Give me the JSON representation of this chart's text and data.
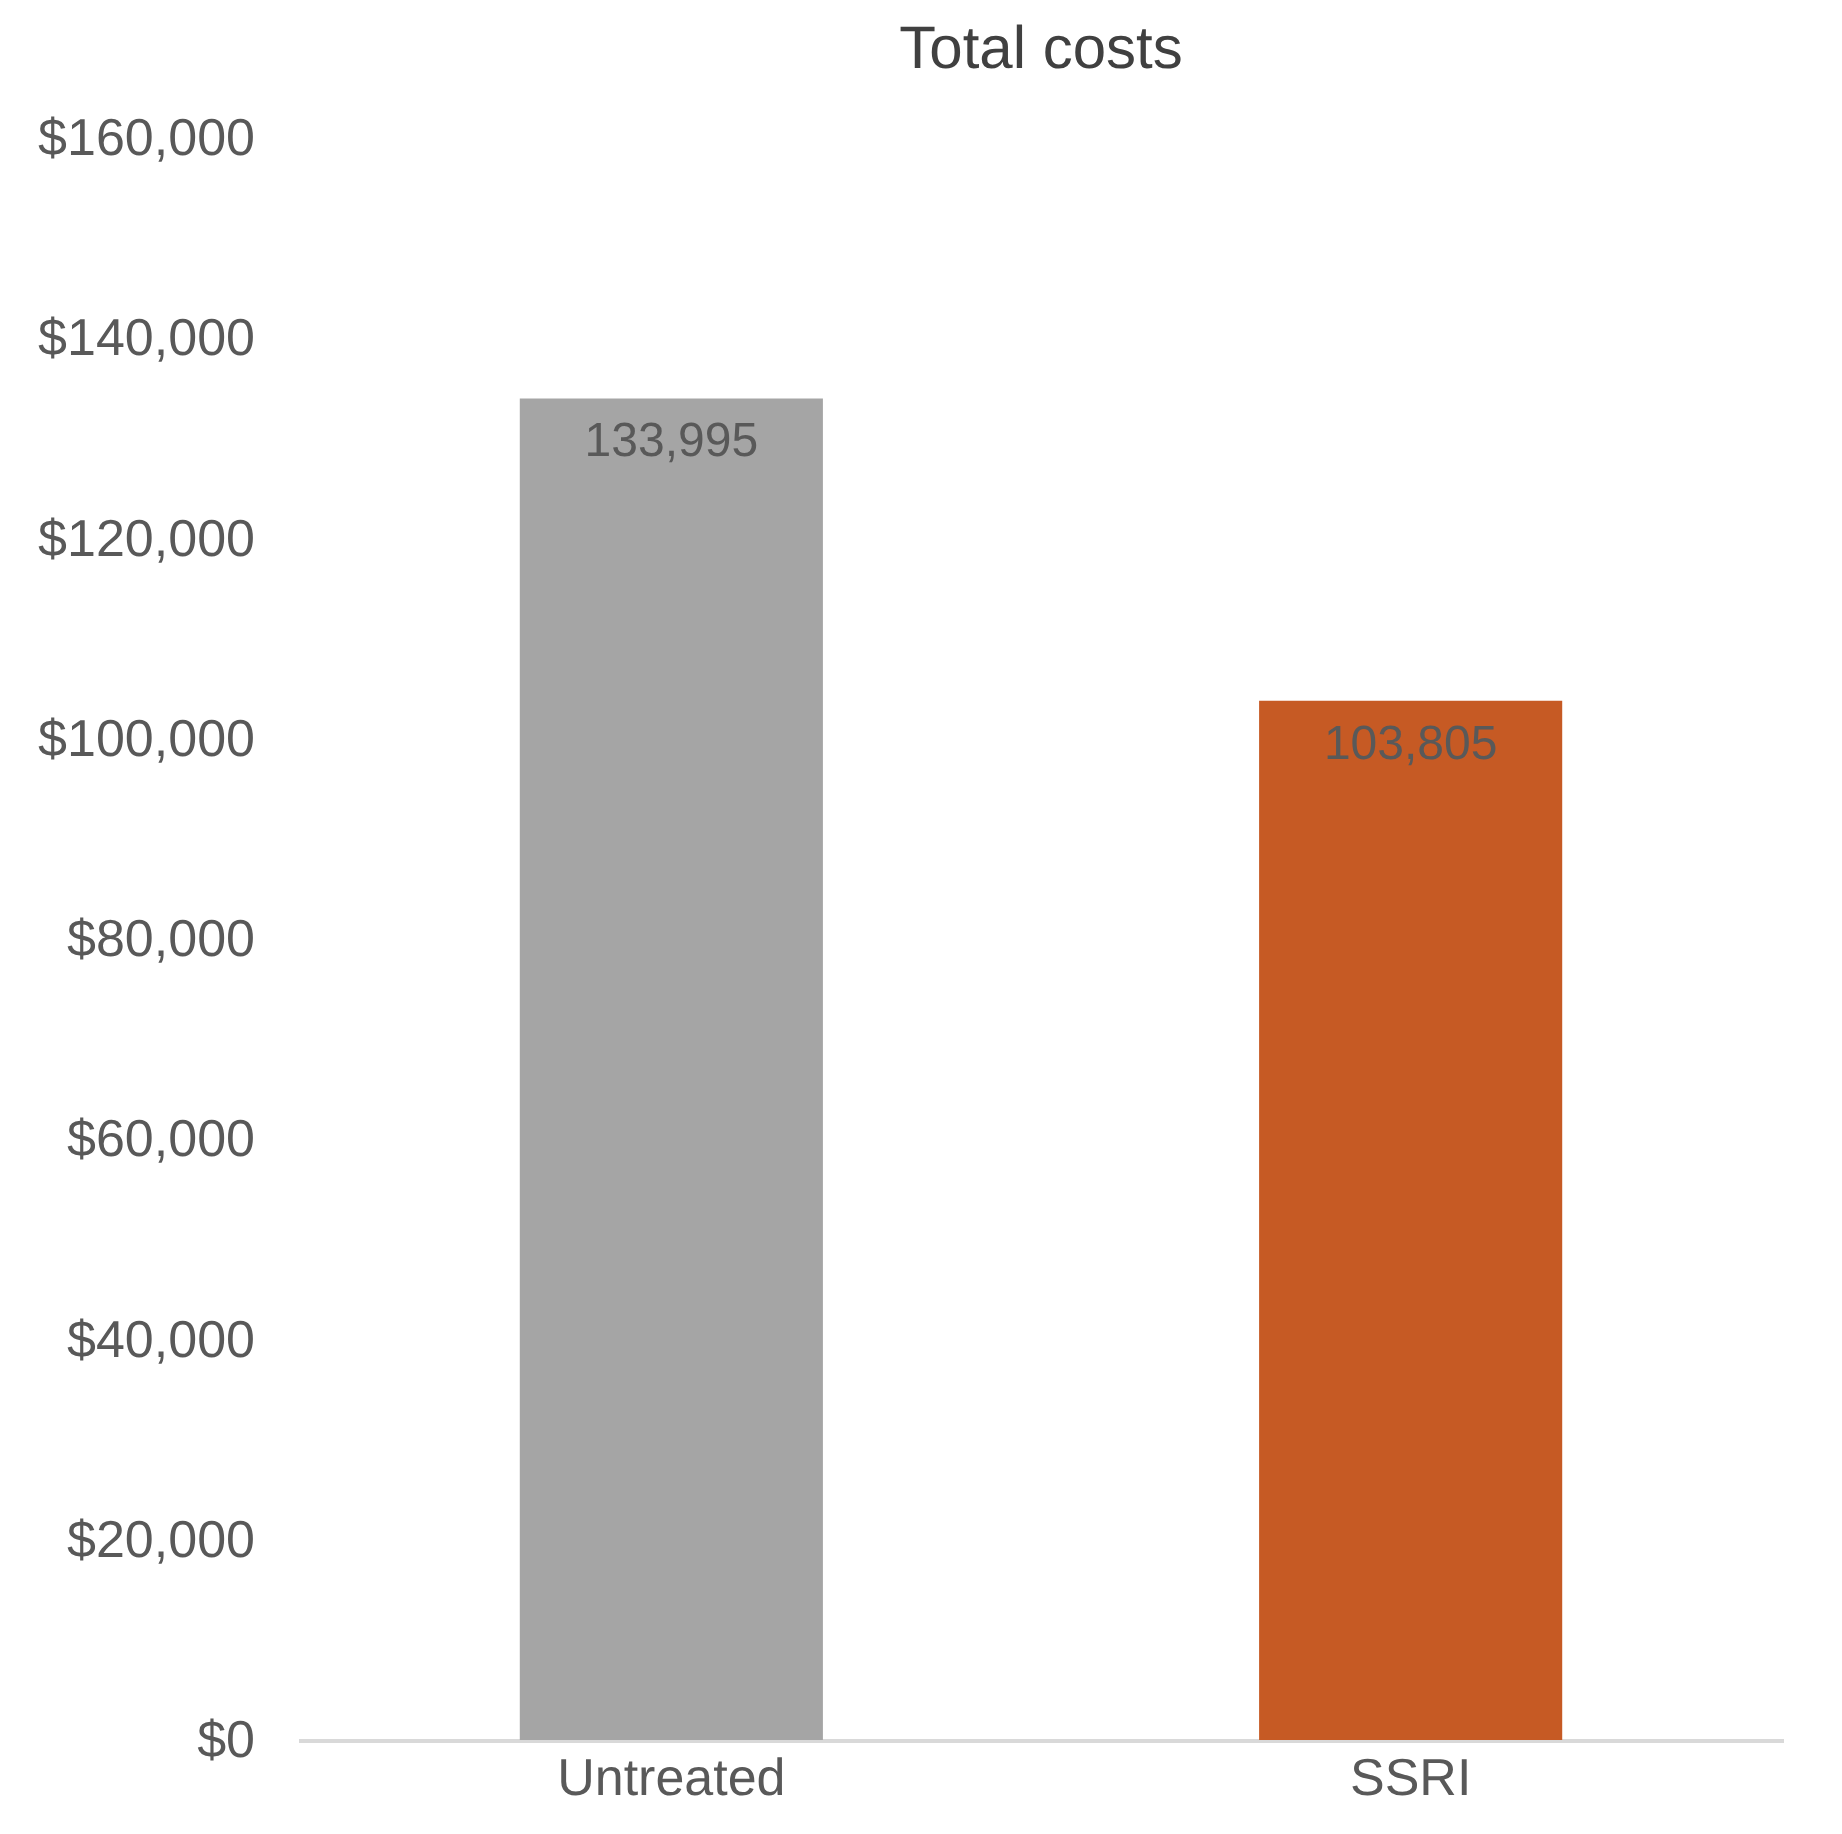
{
  "chart_data": {
    "type": "bar",
    "title": "Total costs",
    "categories": [
      "Untreated",
      "SSRI"
    ],
    "values": [
      133995,
      103805
    ],
    "colors": [
      "#a5a5a5",
      "#c65a24"
    ],
    "value_labels": [
      "133,995",
      "103,805"
    ],
    "ylim": [
      0,
      160000
    ],
    "yticks": [
      {
        "value": 0,
        "label": "$0"
      },
      {
        "value": 20000,
        "label": "$20,000"
      },
      {
        "value": 40000,
        "label": "$40,000"
      },
      {
        "value": 60000,
        "label": "$60,000"
      },
      {
        "value": 80000,
        "label": "$80,000"
      },
      {
        "value": 100000,
        "label": "$100,000"
      },
      {
        "value": 120000,
        "label": "$120,000"
      },
      {
        "value": 140000,
        "label": "$140,000"
      },
      {
        "value": 160000,
        "label": "$160,000"
      }
    ],
    "grid": false,
    "legend": false
  }
}
